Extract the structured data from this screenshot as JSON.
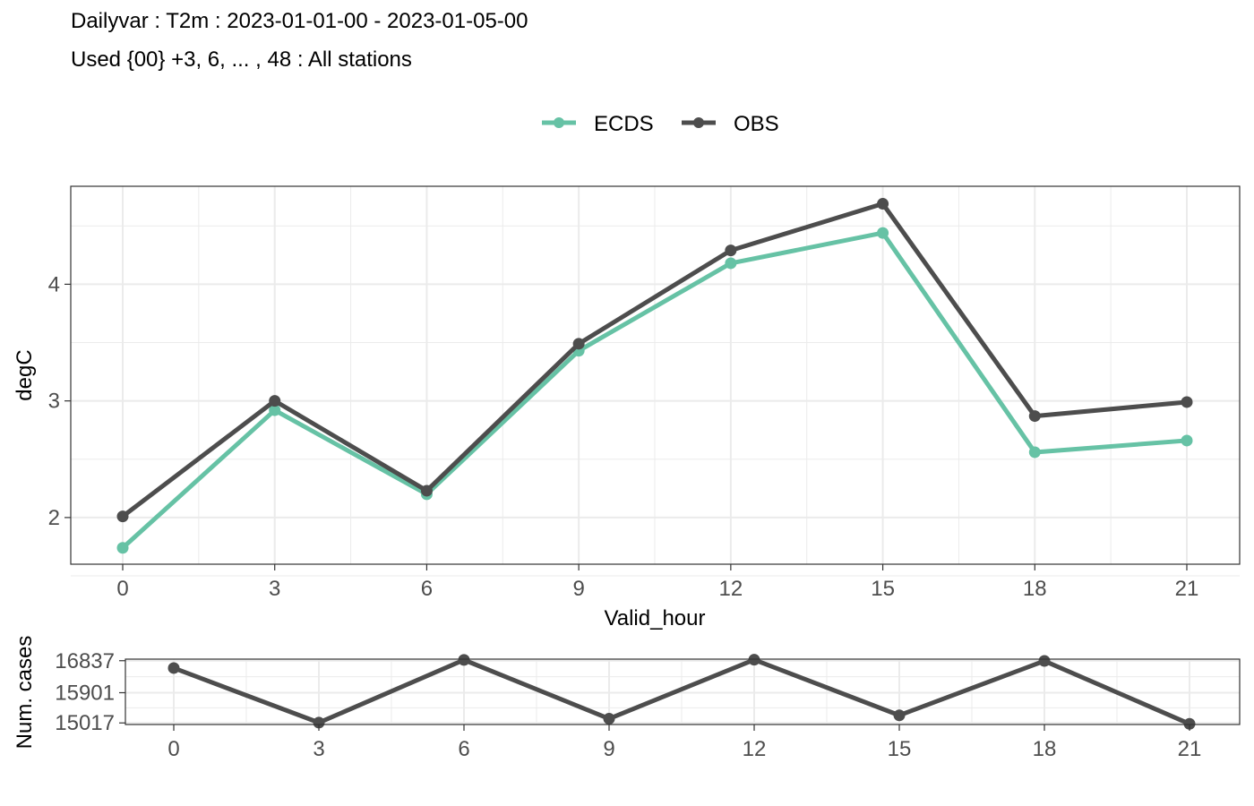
{
  "title": {
    "line1": "Dailyvar : T2m : 2023-01-01-00 - 2023-01-05-00",
    "line2": "Used {00} +3, 6, ... , 48 : All stations"
  },
  "chart_data": [
    {
      "type": "line",
      "xlabel": "Valid_hour",
      "ylabel": "degC",
      "x": [
        0,
        3,
        6,
        9,
        12,
        15,
        18,
        21
      ],
      "x_ticks": [
        "0",
        "3",
        "6",
        "9",
        "12",
        "15",
        "18",
        "21"
      ],
      "y_ticks": [
        "2",
        "3",
        "4"
      ],
      "ylim": [
        1.6,
        4.84
      ],
      "grid": true,
      "legend_position": "top",
      "series": [
        {
          "name": "ECDS",
          "color": "#66c2a5",
          "values": [
            1.74,
            2.92,
            2.2,
            3.43,
            4.18,
            4.44,
            2.56,
            2.66
          ]
        },
        {
          "name": "OBS",
          "color": "#4d4d4d",
          "values": [
            2.01,
            3.0,
            2.23,
            3.49,
            4.29,
            4.69,
            2.87,
            2.99
          ]
        }
      ]
    },
    {
      "type": "line",
      "xlabel": "",
      "ylabel": "Num. cases",
      "x": [
        0,
        3,
        6,
        9,
        12,
        15,
        18,
        21
      ],
      "x_ticks": [
        "0",
        "3",
        "6",
        "9",
        "12",
        "15",
        "18",
        "21"
      ],
      "y_ticks": [
        "15017",
        "15901",
        "16837"
      ],
      "ylim": [
        14971,
        16883
      ],
      "grid": true,
      "series": [
        {
          "color": "#4d4d4d",
          "values": [
            16622,
            15026,
            16860,
            15140,
            16865,
            15240,
            16830,
            14990
          ]
        }
      ]
    }
  ]
}
